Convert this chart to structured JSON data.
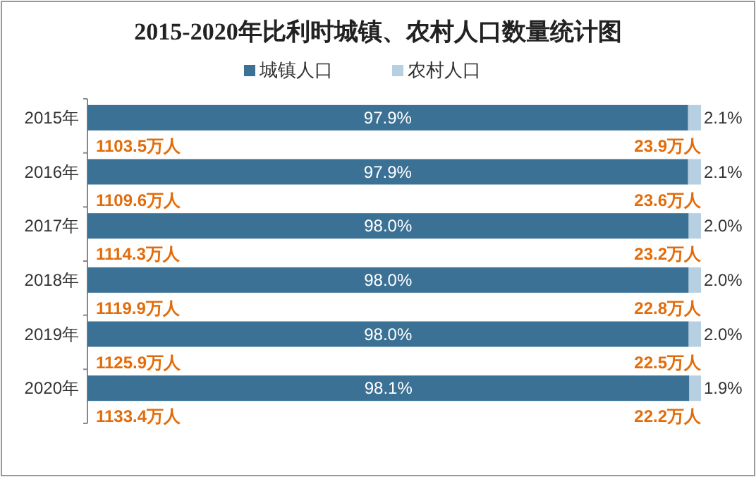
{
  "chart_data": {
    "type": "bar",
    "orientation": "horizontal",
    "stacked": true,
    "legend": "top",
    "title": "2015-2020年比利时城镇、农村人口数量统计图",
    "categories": [
      "2015年",
      "2016年",
      "2017年",
      "2018年",
      "2019年",
      "2020年"
    ],
    "series": [
      {
        "name": "城镇人口",
        "color": "#3a7194",
        "values": [
          97.9,
          97.9,
          98.0,
          98.0,
          98.0,
          98.1
        ],
        "value_labels": [
          "97.9%",
          "97.9%",
          "98.0%",
          "98.0%",
          "98.0%",
          "98.1%"
        ]
      },
      {
        "name": "农村人口",
        "color": "#b6d0e2",
        "values": [
          2.1,
          2.1,
          2.0,
          2.0,
          2.0,
          1.9
        ],
        "value_labels": [
          "2.1%",
          "2.1%",
          "2.0%",
          "2.0%",
          "2.0%",
          "1.9%"
        ]
      }
    ],
    "annotations": [
      "1103.5万人",
      "23.9万人",
      "1109.6万人",
      "23.6万人",
      "1114.3万人",
      "23.2万人",
      "1119.9万人",
      "22.8万人",
      "1125.9万人",
      "22.5万人",
      "1133.4万人",
      "22.2万人"
    ]
  }
}
